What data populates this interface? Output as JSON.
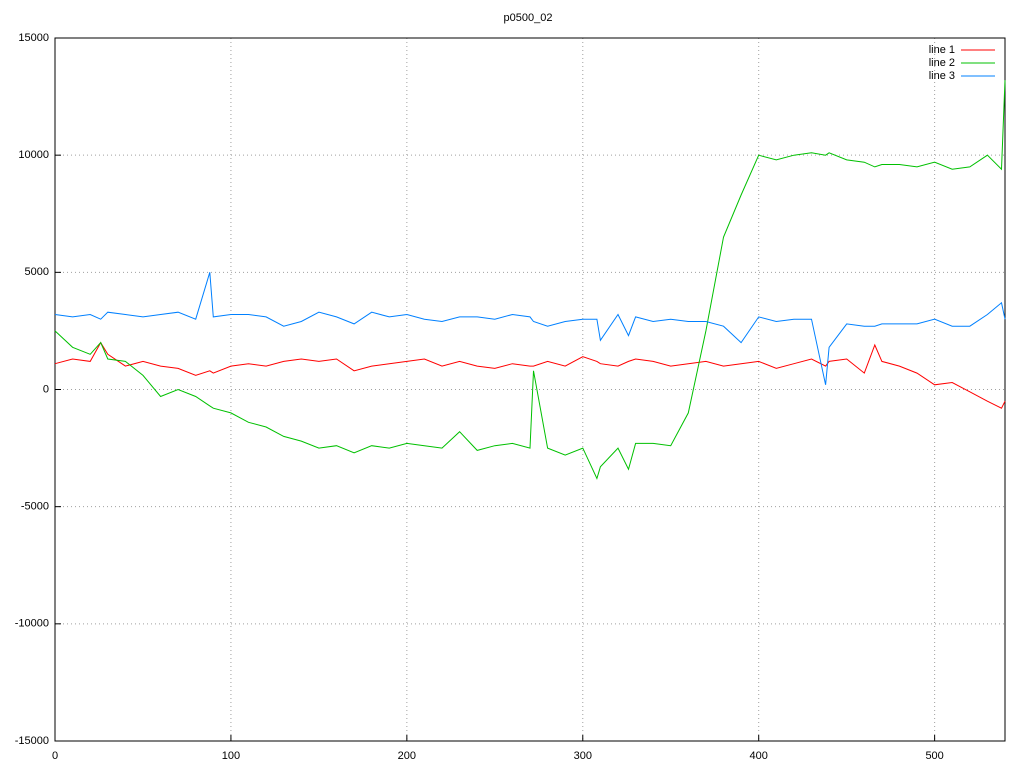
{
  "chart_data": {
    "type": "line",
    "title": "p0500_02",
    "x": [
      0,
      10,
      20,
      26,
      30,
      40,
      50,
      60,
      70,
      80,
      88,
      90,
      100,
      110,
      120,
      130,
      140,
      150,
      160,
      170,
      180,
      190,
      200,
      210,
      220,
      230,
      240,
      250,
      260,
      270,
      272,
      280,
      290,
      300,
      308,
      310,
      320,
      326,
      330,
      340,
      350,
      360,
      370,
      380,
      390,
      400,
      410,
      420,
      430,
      438,
      440,
      450,
      460,
      466,
      470,
      480,
      490,
      500,
      510,
      520,
      530,
      538,
      540
    ],
    "series": [
      {
        "name": "line 1",
        "color": "#ff0000",
        "values": [
          1100,
          1300,
          1200,
          2000,
          1500,
          1000,
          1200,
          1000,
          900,
          600,
          800,
          700,
          1000,
          1100,
          1000,
          1200,
          1300,
          1200,
          1300,
          800,
          1000,
          1100,
          1200,
          1300,
          1000,
          1200,
          1000,
          900,
          1100,
          1000,
          1000,
          1200,
          1000,
          1400,
          1200,
          1100,
          1000,
          1200,
          1300,
          1200,
          1000,
          1100,
          1200,
          1000,
          1100,
          1200,
          900,
          1100,
          1300,
          1000,
          1200,
          1300,
          700,
          1900,
          1200,
          1000,
          700,
          200,
          300,
          -100,
          -500,
          -800,
          -500
        ]
      },
      {
        "name": "line 2",
        "color": "#00c000",
        "values": [
          2500,
          1800,
          1500,
          2000,
          1300,
          1200,
          600,
          -300,
          0,
          -300,
          -700,
          -800,
          -1000,
          -1400,
          -1600,
          -2000,
          -2200,
          -2500,
          -2400,
          -2700,
          -2400,
          -2500,
          -2300,
          -2400,
          -2500,
          -1800,
          -2600,
          -2400,
          -2300,
          -2500,
          800,
          -2500,
          -2800,
          -2500,
          -3800,
          -3300,
          -2500,
          -3400,
          -2300,
          -2300,
          -2400,
          -1000,
          2500,
          6500,
          8300,
          10000,
          9800,
          10000,
          10100,
          10000,
          10100,
          9800,
          9700,
          9500,
          9600,
          9600,
          9500,
          9700,
          9400,
          9500,
          10000,
          9400,
          13200
        ]
      },
      {
        "name": "line 3",
        "color": "#0080ff",
        "values": [
          3200,
          3100,
          3200,
          3000,
          3300,
          3200,
          3100,
          3200,
          3300,
          3000,
          5000,
          3100,
          3200,
          3200,
          3100,
          2700,
          2900,
          3300,
          3100,
          2800,
          3300,
          3100,
          3200,
          3000,
          2900,
          3100,
          3100,
          3000,
          3200,
          3100,
          2900,
          2700,
          2900,
          3000,
          3000,
          2100,
          3200,
          2300,
          3100,
          2900,
          3000,
          2900,
          2900,
          2700,
          2000,
          3100,
          2900,
          3000,
          3000,
          200,
          1800,
          2800,
          2700,
          2700,
          2800,
          2800,
          2800,
          3000,
          2700,
          2700,
          3200,
          3700,
          3000
        ]
      }
    ],
    "xlim": [
      0,
      540
    ],
    "xticks": [
      0,
      100,
      200,
      300,
      400,
      500
    ],
    "ylim": [
      -15000,
      15000
    ],
    "yticks": [
      -15000,
      -10000,
      -5000,
      0,
      5000,
      10000,
      15000
    ],
    "grid": true,
    "legend": "top-right"
  }
}
